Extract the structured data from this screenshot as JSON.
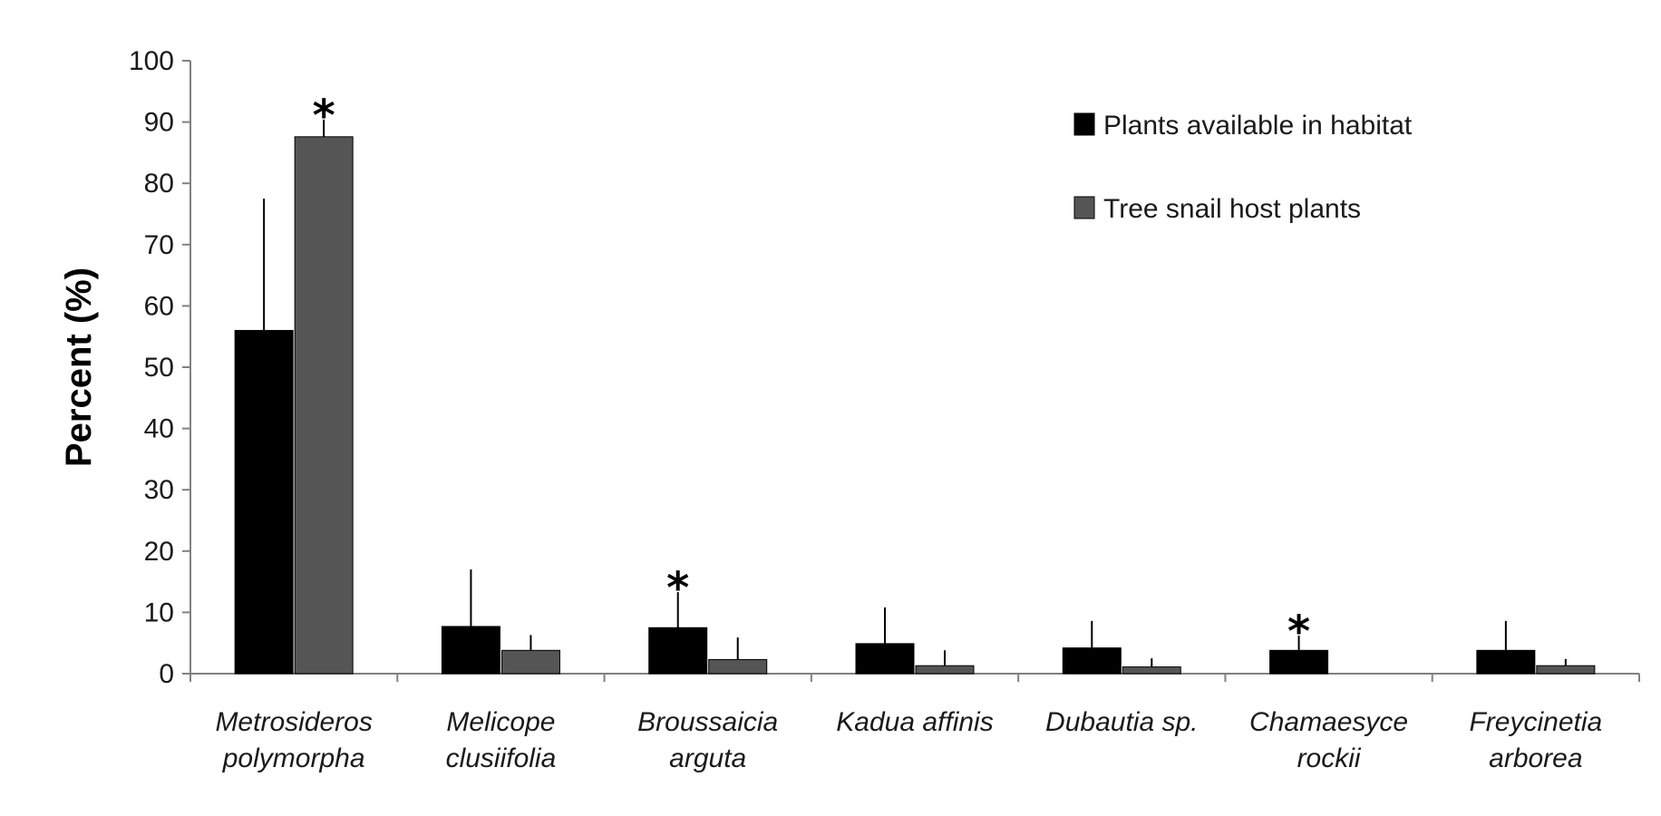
{
  "chart_data": {
    "type": "bar",
    "title": "",
    "xlabel": "",
    "ylabel": "Percent (%)",
    "ylim": [
      0,
      100
    ],
    "yticks": [
      0,
      10,
      20,
      30,
      40,
      50,
      60,
      70,
      80,
      90,
      100
    ],
    "grid": false,
    "legend_position": "top-right",
    "categories": [
      [
        "Metrosideros",
        "polymorpha"
      ],
      [
        "Melicope",
        "clusiifolia"
      ],
      [
        "Broussaicia",
        "arguta"
      ],
      [
        "Kadua affinis"
      ],
      [
        "Dubautia sp."
      ],
      [
        "Chamaesyce",
        "rockii"
      ],
      [
        "Freycinetia",
        "arborea"
      ]
    ],
    "series": [
      {
        "name": "Plants available in habitat",
        "color": "#000000",
        "values": [
          56,
          7.7,
          7.5,
          4.9,
          4.2,
          3.8,
          3.8
        ],
        "errors": [
          21.5,
          9.3,
          5.8,
          5.9,
          4.4,
          2.4,
          4.8
        ]
      },
      {
        "name": "Tree snail host plants",
        "color": "#555555",
        "values": [
          87.6,
          3.8,
          2.3,
          1.3,
          1.1,
          0,
          1.3
        ],
        "errors": [
          2.8,
          2.5,
          3.6,
          2.5,
          1.4,
          0,
          1.1
        ]
      }
    ],
    "annotations": [
      {
        "text": "*",
        "category": 0,
        "series": 1
      },
      {
        "text": "*",
        "category": 2,
        "series": 0
      },
      {
        "text": "*",
        "category": 5,
        "series": 0
      }
    ]
  }
}
